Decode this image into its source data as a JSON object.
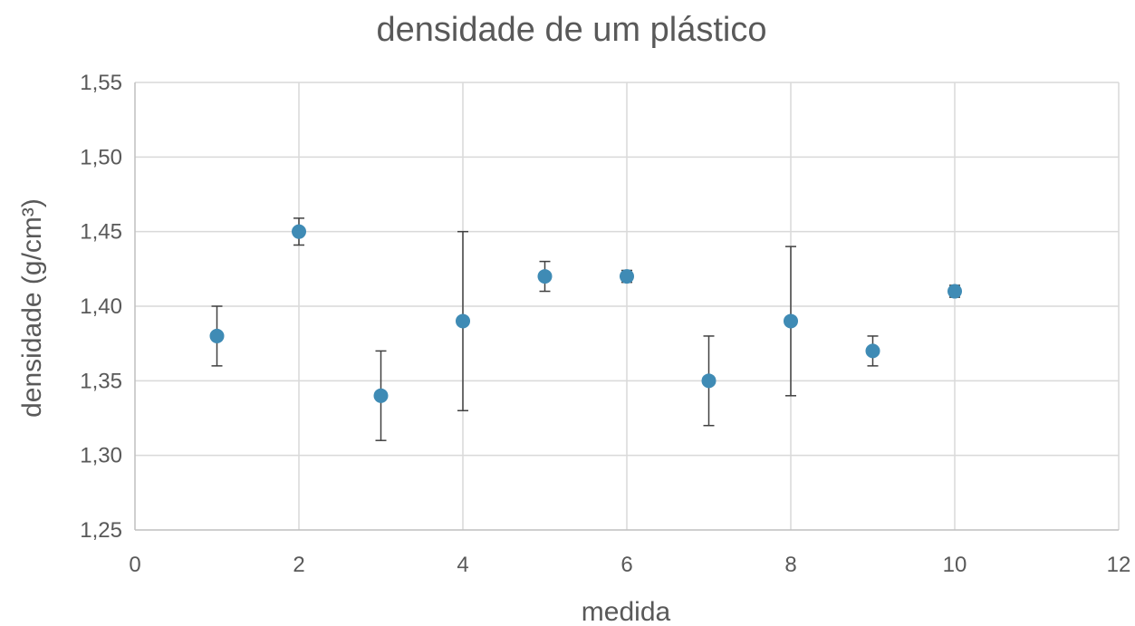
{
  "chart_data": {
    "type": "scatter",
    "title": "densidade de um plástico",
    "xlabel": "medida",
    "ylabel": "densidade (g/cm³)",
    "xlim": [
      0,
      12
    ],
    "ylim": [
      1.25,
      1.55
    ],
    "x_ticks": [
      0,
      2,
      4,
      6,
      8,
      10,
      12
    ],
    "y_ticks": [
      1.25,
      1.3,
      1.35,
      1.4,
      1.45,
      1.5,
      1.55
    ],
    "x_tick_labels": [
      "0",
      "2",
      "4",
      "6",
      "8",
      "10",
      "12"
    ],
    "y_tick_labels": [
      "1,25",
      "1,30",
      "1,35",
      "1,40",
      "1,45",
      "1,50",
      "1,55"
    ],
    "grid": true,
    "legend": "none",
    "series": [
      {
        "color": "#3f8bb5",
        "x": [
          1,
          2,
          3,
          4,
          5,
          6,
          7,
          8,
          9,
          10
        ],
        "y": [
          1.38,
          1.45,
          1.34,
          1.39,
          1.42,
          1.42,
          1.35,
          1.39,
          1.37,
          1.41
        ],
        "y_err": [
          0.02,
          0.009,
          0.03,
          0.06,
          0.01,
          0.004,
          0.03,
          0.05,
          0.01,
          0.004
        ]
      }
    ]
  }
}
